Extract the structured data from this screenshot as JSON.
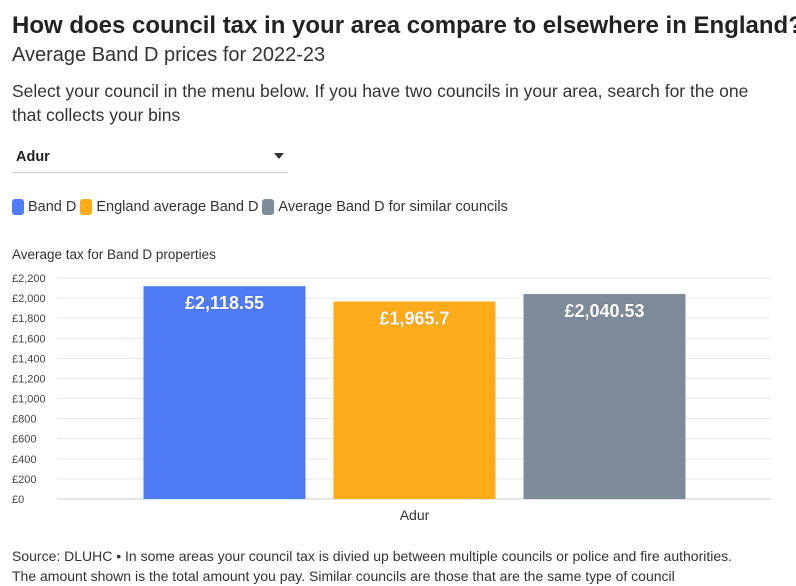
{
  "header": {
    "title": "How does council tax in your area compare to elsewhere in England?",
    "subtitle": "Average Band D prices for 2022-23",
    "instructions": "Select your council in the menu below. If you have two councils in your area, search for the one that collects your bins"
  },
  "dropdown": {
    "selected": "Adur"
  },
  "legend": {
    "items": [
      {
        "label": "Band D",
        "color": "#4f7cf5"
      },
      {
        "label": "England average Band D",
        "color": "#fdab1a"
      },
      {
        "label": "Average Band D for similar councils",
        "color": "#7e8c99"
      }
    ]
  },
  "chart_data": {
    "type": "bar",
    "ylabel": "Average tax for Band D properties",
    "categories": [
      "Adur"
    ],
    "series": [
      {
        "name": "Band D",
        "values": [
          2118.55
        ],
        "label": "£2,118.55",
        "color": "#4f7cf5"
      },
      {
        "name": "England average Band D",
        "values": [
          1965.7
        ],
        "label": "£1,965.7",
        "color": "#fdab1a"
      },
      {
        "name": "Average Band D for similar councils",
        "values": [
          2040.53
        ],
        "label": "£2,040.53",
        "color": "#7e8c99"
      }
    ],
    "ylim": [
      0,
      2200
    ],
    "yticks": [
      0,
      200,
      400,
      600,
      800,
      1000,
      1200,
      1400,
      1600,
      1800,
      2000,
      2200
    ],
    "ytick_labels": [
      "£0",
      "£200",
      "£400",
      "£600",
      "£800",
      "£1,000",
      "£1,200",
      "£1,400",
      "£1,600",
      "£1,800",
      "£2,000",
      "£2,200"
    ],
    "grid": true
  },
  "footer": {
    "source": "Source: DLUHC • In some areas your council tax is divied up between multiple councils or police and fire authorities.",
    "source_line2": "The amount shown is the total amount you pay. Similar councils are those that are the same type of council"
  }
}
